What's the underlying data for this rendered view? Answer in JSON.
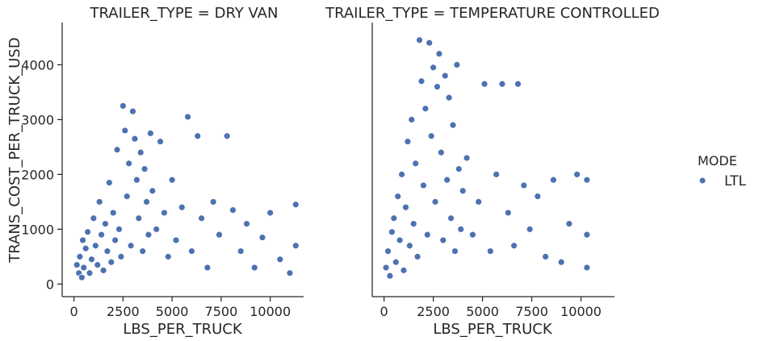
{
  "chart_data": [
    {
      "type": "scatter",
      "title": "TRAILER_TYPE = DRY VAN",
      "xlabel": "LBS_PER_TRUCK",
      "ylabel": "TRANS_COST_PER_TRUCK_USD",
      "xlim": [
        -600,
        11700
      ],
      "ylim": [
        -230,
        4770
      ],
      "xticks": [
        0,
        2500,
        5000,
        7500,
        10000
      ],
      "xtick_labels": [
        "0",
        "2500",
        "5000",
        "7500",
        "10000"
      ],
      "yticks": [
        0,
        1000,
        2000,
        3000,
        4000
      ],
      "ytick_labels": [
        "0",
        "1000",
        "2000",
        "3000",
        "4000"
      ],
      "grid": false,
      "series": [
        {
          "name": "LTL",
          "color": "#4c72b0",
          "points": [
            [
              150,
              350
            ],
            [
              250,
              200
            ],
            [
              300,
              500
            ],
            [
              400,
              120
            ],
            [
              450,
              800
            ],
            [
              500,
              300
            ],
            [
              600,
              650
            ],
            [
              700,
              950
            ],
            [
              800,
              200
            ],
            [
              900,
              450
            ],
            [
              1000,
              1200
            ],
            [
              1100,
              700
            ],
            [
              1200,
              350
            ],
            [
              1300,
              1500
            ],
            [
              1400,
              900
            ],
            [
              1500,
              250
            ],
            [
              1600,
              1100
            ],
            [
              1700,
              600
            ],
            [
              1800,
              1850
            ],
            [
              1900,
              400
            ],
            [
              2000,
              1300
            ],
            [
              2100,
              800
            ],
            [
              2200,
              2450
            ],
            [
              2300,
              1000
            ],
            [
              2400,
              500
            ],
            [
              2500,
              3250
            ],
            [
              2600,
              2800
            ],
            [
              2700,
              1600
            ],
            [
              2800,
              2200
            ],
            [
              2900,
              700
            ],
            [
              3000,
              3150
            ],
            [
              3100,
              2650
            ],
            [
              3200,
              1900
            ],
            [
              3300,
              1200
            ],
            [
              3400,
              2400
            ],
            [
              3500,
              600
            ],
            [
              3600,
              2100
            ],
            [
              3700,
              1500
            ],
            [
              3800,
              900
            ],
            [
              3900,
              2750
            ],
            [
              4000,
              1700
            ],
            [
              4200,
              1000
            ],
            [
              4400,
              2600
            ],
            [
              4600,
              1300
            ],
            [
              4800,
              500
            ],
            [
              5000,
              1900
            ],
            [
              5200,
              800
            ],
            [
              5500,
              1400
            ],
            [
              5800,
              3050
            ],
            [
              6000,
              600
            ],
            [
              6300,
              2700
            ],
            [
              6500,
              1200
            ],
            [
              6800,
              300
            ],
            [
              7100,
              1500
            ],
            [
              7400,
              900
            ],
            [
              7800,
              2700
            ],
            [
              8100,
              1350
            ],
            [
              8500,
              600
            ],
            [
              8800,
              1100
            ],
            [
              9200,
              300
            ],
            [
              9600,
              850
            ],
            [
              10000,
              1300
            ],
            [
              10500,
              450
            ],
            [
              11000,
              200
            ],
            [
              11300,
              1450
            ],
            [
              11300,
              700
            ]
          ]
        }
      ]
    },
    {
      "type": "scatter",
      "title": "TRAILER_TYPE = TEMPERATURE CONTROLLED",
      "xlabel": "LBS_PER_TRUCK",
      "ylabel": "",
      "xlim": [
        -600,
        11700
      ],
      "ylim": [
        -230,
        4770
      ],
      "xticks": [
        0,
        2500,
        5000,
        7500,
        10000
      ],
      "xtick_labels": [
        "0",
        "2500",
        "5000",
        "7500",
        "10000"
      ],
      "grid": false,
      "series": [
        {
          "name": "LTL",
          "color": "#4c72b0",
          "points": [
            [
              100,
              300
            ],
            [
              200,
              600
            ],
            [
              300,
              150
            ],
            [
              400,
              950
            ],
            [
              500,
              1200
            ],
            [
              600,
              400
            ],
            [
              700,
              1600
            ],
            [
              800,
              800
            ],
            [
              900,
              2000
            ],
            [
              1000,
              250
            ],
            [
              1100,
              1400
            ],
            [
              1200,
              2600
            ],
            [
              1300,
              700
            ],
            [
              1400,
              3000
            ],
            [
              1500,
              1100
            ],
            [
              1600,
              2200
            ],
            [
              1700,
              500
            ],
            [
              1800,
              4450
            ],
            [
              1900,
              3700
            ],
            [
              2000,
              1800
            ],
            [
              2100,
              3200
            ],
            [
              2200,
              900
            ],
            [
              2300,
              4400
            ],
            [
              2400,
              2700
            ],
            [
              2500,
              3950
            ],
            [
              2600,
              1500
            ],
            [
              2700,
              3600
            ],
            [
              2800,
              4200
            ],
            [
              2900,
              2400
            ],
            [
              3000,
              800
            ],
            [
              3100,
              3800
            ],
            [
              3200,
              1900
            ],
            [
              3300,
              3400
            ],
            [
              3400,
              1200
            ],
            [
              3500,
              2900
            ],
            [
              3600,
              600
            ],
            [
              3700,
              4000
            ],
            [
              3800,
              2100
            ],
            [
              3900,
              1000
            ],
            [
              4000,
              1700
            ],
            [
              4200,
              2300
            ],
            [
              4500,
              900
            ],
            [
              4800,
              1500
            ],
            [
              5100,
              3650
            ],
            [
              5400,
              600
            ],
            [
              5700,
              2000
            ],
            [
              6000,
              3650
            ],
            [
              6300,
              1300
            ],
            [
              6600,
              700
            ],
            [
              6800,
              3650
            ],
            [
              7100,
              1800
            ],
            [
              7400,
              1000
            ],
            [
              7800,
              1600
            ],
            [
              8200,
              500
            ],
            [
              8600,
              1900
            ],
            [
              9000,
              400
            ],
            [
              9400,
              1100
            ],
            [
              9800,
              2000
            ],
            [
              10300,
              1900
            ],
            [
              10300,
              900
            ],
            [
              10300,
              300
            ]
          ]
        }
      ]
    }
  ],
  "legend": {
    "title": "MODE",
    "items": [
      {
        "label": "LTL",
        "color": "#4c72b0"
      }
    ]
  }
}
